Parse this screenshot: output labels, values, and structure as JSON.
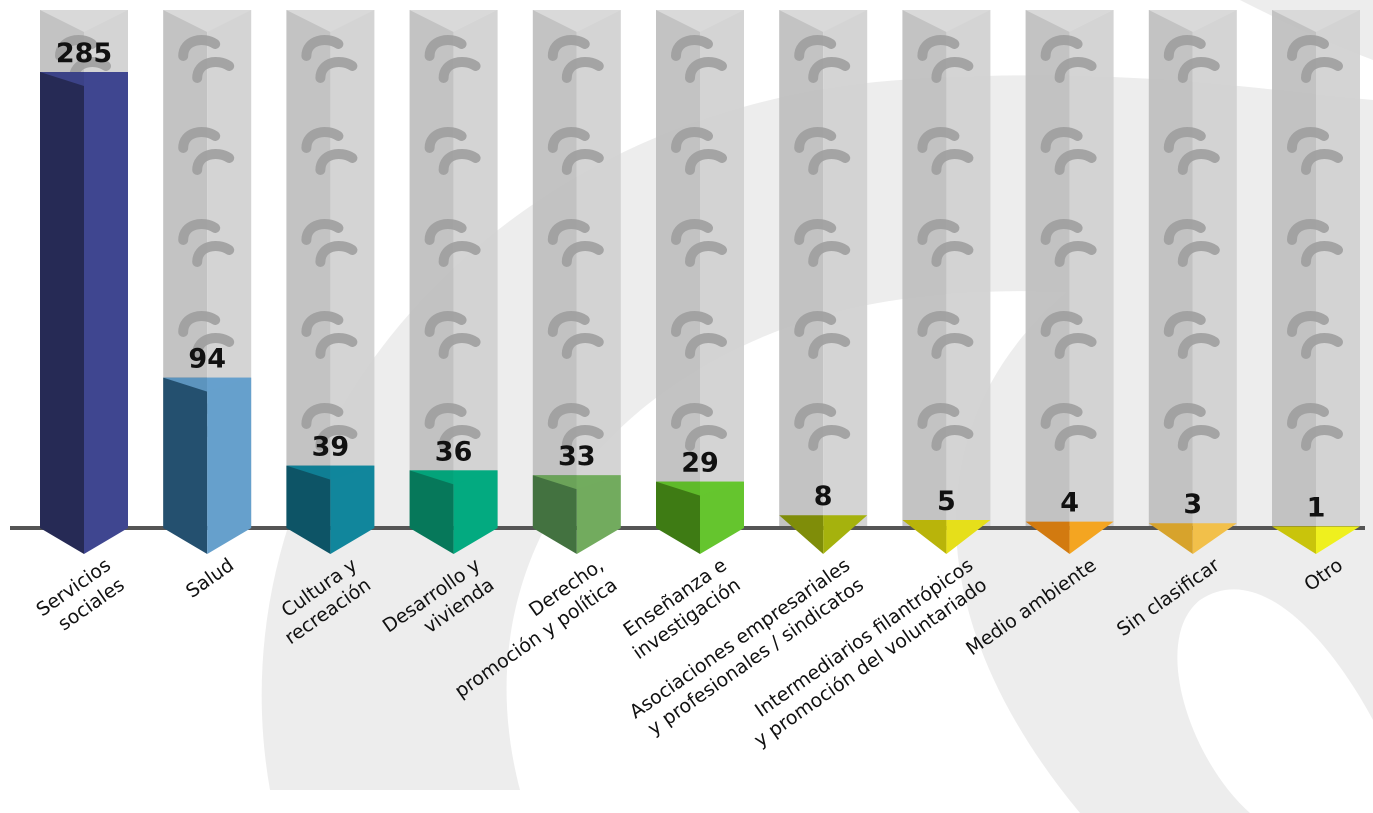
{
  "chart_data": {
    "type": "bar",
    "title": "",
    "xlabel": "",
    "ylabel": "",
    "ylim": [
      0,
      285
    ],
    "grid": false,
    "legend": "none",
    "categories": [
      [
        "Servicios",
        "sociales"
      ],
      [
        "Salud"
      ],
      [
        "Cultura y",
        "recreación"
      ],
      [
        "Desarrollo y",
        "vivienda"
      ],
      [
        "Derecho,",
        "promoción y política"
      ],
      [
        "Enseñanza e",
        "investigación"
      ],
      [
        "Asociaciones empresariales",
        "y profesionales / sindicatos"
      ],
      [
        "Intermediarios filantrópicos",
        "y promoción del voluntariado"
      ],
      [
        "Medio ambiente"
      ],
      [
        "Sin clasificar"
      ],
      [
        "Otro"
      ]
    ],
    "values": [
      285,
      94,
      39,
      36,
      33,
      29,
      8,
      5,
      4,
      3,
      1
    ],
    "value_labels": [
      "285",
      "94",
      "39",
      "36",
      "33",
      "29",
      "8",
      "5",
      "4",
      "3",
      "1"
    ],
    "colors": [
      [
        "#262a55",
        "#3f4690"
      ],
      [
        "#24506f",
        "#66a0cc"
      ],
      [
        "#0d5466",
        "#11869c"
      ],
      [
        "#06785a",
        "#03aa80"
      ],
      [
        "#437240",
        "#72ab5e"
      ],
      [
        "#3e7b14",
        "#65c52e"
      ],
      [
        "#7f8d09",
        "#a5b20d"
      ],
      [
        "#b9b40a",
        "#e6df1a"
      ],
      [
        "#d27a10",
        "#f4a521"
      ],
      [
        "#d7a32c",
        "#f2c04a"
      ],
      [
        "#c9c40b",
        "#eff01e"
      ]
    ]
  }
}
